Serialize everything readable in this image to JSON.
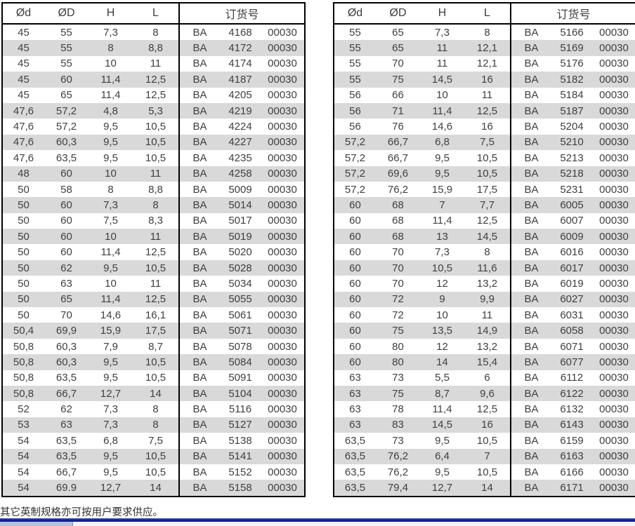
{
  "columns": {
    "d": "Ød",
    "D": "ØD",
    "h": "H",
    "l": "L",
    "order": "订货号"
  },
  "order": {
    "prefix": "BA",
    "suffix": "00030"
  },
  "tables": [
    {
      "rows": [
        [
          "45",
          "55",
          "7,3",
          "8",
          "4168"
        ],
        [
          "45",
          "55",
          "8",
          "8,8",
          "4172"
        ],
        [
          "45",
          "55",
          "10",
          "11",
          "4174"
        ],
        [
          "45",
          "60",
          "11,4",
          "12,5",
          "4187"
        ],
        [
          "45",
          "65",
          "11,4",
          "12,5",
          "4205"
        ],
        [
          "47,6",
          "57,2",
          "4,8",
          "5,3",
          "4219"
        ],
        [
          "47,6",
          "57,2",
          "9,5",
          "10,5",
          "4224"
        ],
        [
          "47,6",
          "60,3",
          "9,5",
          "10,5",
          "4227"
        ],
        [
          "47,6",
          "63,5",
          "9,5",
          "10,5",
          "4235"
        ],
        [
          "48",
          "60",
          "10",
          "11",
          "4258"
        ],
        [
          "50",
          "58",
          "8",
          "8,8",
          "5009"
        ],
        [
          "50",
          "60",
          "7,3",
          "8",
          "5014"
        ],
        [
          "50",
          "60",
          "7,5",
          "8,3",
          "5017"
        ],
        [
          "50",
          "60",
          "10",
          "11",
          "5019"
        ],
        [
          "50",
          "60",
          "11,4",
          "12,5",
          "5020"
        ],
        [
          "50",
          "62",
          "9,5",
          "10,5",
          "5028"
        ],
        [
          "50",
          "63",
          "10",
          "11",
          "5034"
        ],
        [
          "50",
          "65",
          "11,4",
          "12,5",
          "5055"
        ],
        [
          "50",
          "70",
          "14,6",
          "16,1",
          "5061"
        ],
        [
          "50,4",
          "69,9",
          "15,9",
          "17,5",
          "5071"
        ],
        [
          "50,8",
          "60,3",
          "7,9",
          "8,7",
          "5078"
        ],
        [
          "50,8",
          "60,3",
          "9,5",
          "10,5",
          "5084"
        ],
        [
          "50,8",
          "63,5",
          "9,5",
          "10,5",
          "5091"
        ],
        [
          "50,8",
          "66,7",
          "12,7",
          "14",
          "5104"
        ],
        [
          "52",
          "62",
          "7,3",
          "8",
          "5116"
        ],
        [
          "53",
          "63",
          "7,3",
          "8",
          "5127"
        ],
        [
          "54",
          "63,5",
          "6,8",
          "7,5",
          "5138"
        ],
        [
          "54",
          "63,5",
          "9,5",
          "10,5",
          "5141"
        ],
        [
          "54",
          "66,7",
          "9,5",
          "10,5",
          "5152"
        ],
        [
          "54",
          "69.9",
          "12,7",
          "14",
          "5158"
        ]
      ]
    },
    {
      "rows": [
        [
          "55",
          "65",
          "7,3",
          "8",
          "5166"
        ],
        [
          "55",
          "65",
          "11",
          "12,1",
          "5169"
        ],
        [
          "55",
          "70",
          "11",
          "12,1",
          "5176"
        ],
        [
          "55",
          "75",
          "14,5",
          "16",
          "5182"
        ],
        [
          "56",
          "66",
          "10",
          "11",
          "5184"
        ],
        [
          "56",
          "71",
          "11,4",
          "12,5",
          "5187"
        ],
        [
          "56",
          "76",
          "14,6",
          "16",
          "5204"
        ],
        [
          "57,2",
          "66,7",
          "6,8",
          "7,5",
          "5210"
        ],
        [
          "57,2",
          "66,7",
          "9,5",
          "10,5",
          "5213"
        ],
        [
          "57,2",
          "69,6",
          "9,5",
          "10,5",
          "5218"
        ],
        [
          "57,2",
          "76,2",
          "15,9",
          "17,5",
          "5231"
        ],
        [
          "60",
          "68",
          "7",
          "7,7",
          "6005"
        ],
        [
          "60",
          "68",
          "11,4",
          "12,5",
          "6007"
        ],
        [
          "60",
          "68",
          "13",
          "14,5",
          "6009"
        ],
        [
          "60",
          "70",
          "7,3",
          "8",
          "6016"
        ],
        [
          "60",
          "70",
          "10,5",
          "11,6",
          "6017"
        ],
        [
          "60",
          "70",
          "12",
          "13,2",
          "6019"
        ],
        [
          "60",
          "72",
          "9",
          "9,9",
          "6027"
        ],
        [
          "60",
          "72",
          "10",
          "11",
          "6031"
        ],
        [
          "60",
          "75",
          "13,5",
          "14,9",
          "6058"
        ],
        [
          "60",
          "80",
          "12",
          "13,2",
          "6071"
        ],
        [
          "60",
          "80",
          "14",
          "15,4",
          "6077"
        ],
        [
          "63",
          "73",
          "5,5",
          "6",
          "6112"
        ],
        [
          "63",
          "75",
          "8,7",
          "9,6",
          "6122"
        ],
        [
          "63",
          "78",
          "11,4",
          "12,5",
          "6132"
        ],
        [
          "63",
          "83",
          "14,5",
          "16",
          "6143"
        ],
        [
          "63,5",
          "73",
          "9,5",
          "10,5",
          "6159"
        ],
        [
          "63,5",
          "76,2",
          "6,4",
          "7",
          "6163"
        ],
        [
          "63,5",
          "76,2",
          "9,5",
          "10,5",
          "6166"
        ],
        [
          "63,5",
          "79,4",
          "12,7",
          "14",
          "6171"
        ]
      ]
    }
  ],
  "footer": {
    "note": "其它英制规格亦可按用户要求供应。"
  },
  "colors": {
    "stripe": "#d9d9d9",
    "text": "#404040",
    "border": "#000000",
    "bar_navy": "#14219a",
    "bar_left_block": "#b5c0da"
  }
}
